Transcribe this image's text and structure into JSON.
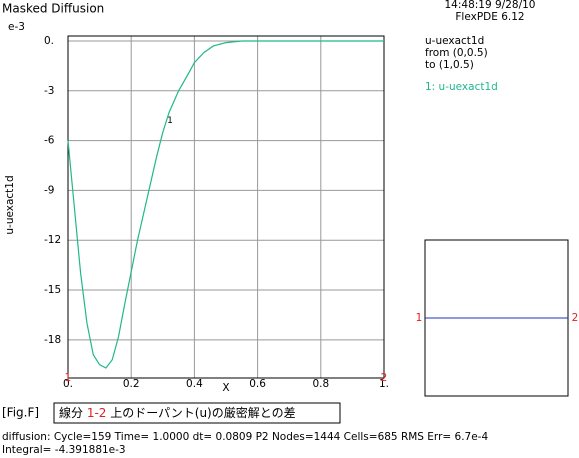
{
  "chart_data": {
    "type": "line",
    "title": "Masked Diffusion",
    "x_label": "X",
    "y_label": "u-uexact1d",
    "y_scale_label": "e-3",
    "x": [
      0,
      0.02,
      0.04,
      0.06,
      0.08,
      0.1,
      0.12,
      0.14,
      0.16,
      0.18,
      0.2,
      0.22,
      0.25,
      0.28,
      0.3,
      0.32,
      0.35,
      0.38,
      0.4,
      0.43,
      0.46,
      0.5,
      0.55,
      0.6,
      0.7,
      0.8,
      0.9,
      1.0
    ],
    "series": [
      {
        "name": "1: u-uexact1d",
        "curve_label": "1",
        "color": "#1fb88c",
        "values": [
          -6,
          -10,
          -14,
          -17,
          -18.9,
          -19.5,
          -19.7,
          -19.2,
          -17.8,
          -15.8,
          -13.9,
          -12,
          -9.5,
          -7,
          -5.5,
          -4.3,
          -3,
          -2,
          -1.3,
          -0.7,
          -0.3,
          -0.1,
          0,
          0,
          0,
          0,
          0,
          0
        ]
      }
    ],
    "xlim": [
      0,
      1
    ],
    "ylim": [
      -20.3,
      0.3
    ],
    "xticks": [
      {
        "value": 0,
        "label": "0."
      },
      0.2,
      0.4,
      0.6,
      0.8,
      {
        "value": 1,
        "label": "1."
      }
    ],
    "yticks": [
      {
        "value": 0,
        "label": "0."
      },
      -3,
      -6,
      -9,
      -12,
      -15,
      -18
    ],
    "grid": true,
    "endpoint_labels": [
      "1",
      "2"
    ]
  },
  "header": {
    "timestamp": "14:48:19 9/28/10",
    "version": "FlexPDE 6.12"
  },
  "plot_info": {
    "variable": "u-uexact1d",
    "from": "from (0,0.5)",
    "to": "to (1,0.5)"
  },
  "segment_box": {
    "start": "1",
    "end": "2"
  },
  "footer": {
    "fig": "[Fig.F]",
    "caption_prefix": "線分",
    "caption_range": "1-2",
    "caption_rest": "上のドーパント(u)の厳密解との差",
    "status": "diffusion:  Cycle=159  Time= 1.0000  dt= 0.0809  P2  Nodes=1444 Cells=685 RMS Err= 6.7e-4",
    "integral": "Integral= -4.391881e-3"
  }
}
